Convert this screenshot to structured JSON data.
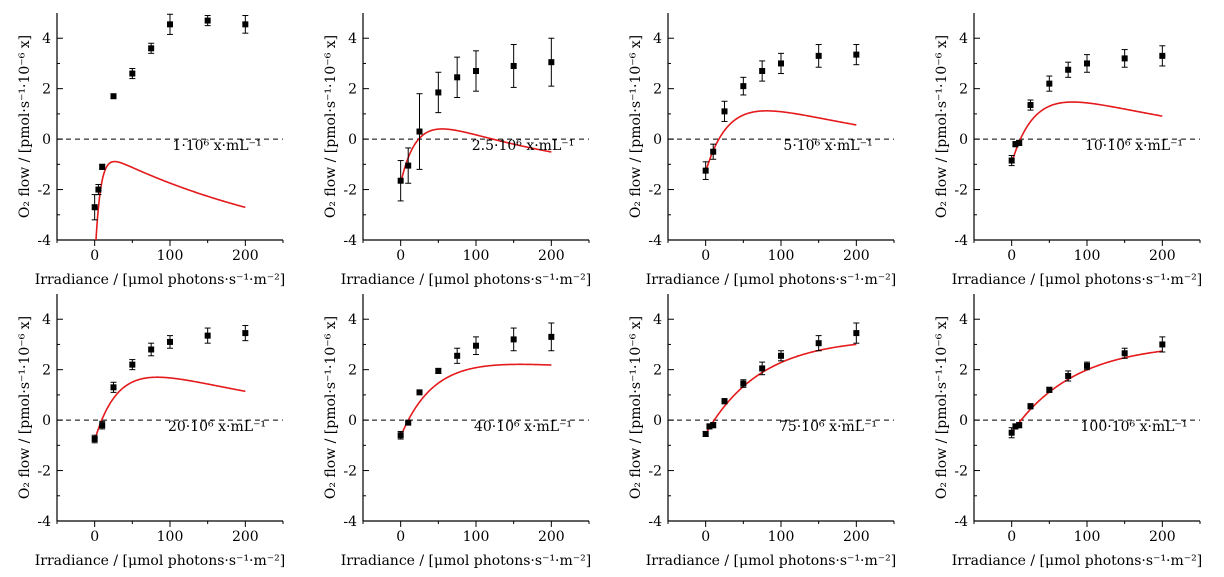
{
  "colors": {
    "fit_line": "#e41a1c",
    "markers": "#000000",
    "zero_line": "#000000"
  },
  "chart_data": [
    {
      "type": "scatter",
      "annotation": "1·10⁶ x·mL⁻¹",
      "xlabel": "Irradiance / [μmol photons·s⁻¹·m⁻²]",
      "ylabel": "O₂ flow / [pmol·s⁻¹·10⁻⁶ x]",
      "xlim": [
        -50,
        250
      ],
      "ylim": [
        -4,
        5
      ],
      "xticks": [
        0,
        100,
        200
      ],
      "yticks": [
        -4,
        -2,
        0,
        2,
        4
      ],
      "zero_line": "dashed",
      "x": [
        0,
        5,
        10,
        25,
        50,
        75,
        100,
        150,
        200
      ],
      "y": [
        -2.7,
        -2.0,
        -1.1,
        1.7,
        2.6,
        3.6,
        4.55,
        4.7,
        4.55
      ],
      "err": [
        0.5,
        0.2,
        0.1,
        0.05,
        0.2,
        0.2,
        0.4,
        0.2,
        0.35
      ],
      "fit": {
        "Pmax": 4.62,
        "alpha": 0.65,
        "beta": 0.0035,
        "Rd": -5.0
      }
    },
    {
      "type": "scatter",
      "annotation": "2.5·10⁶ x·mL⁻¹",
      "xlabel": "Irradiance / [μmol photons·s⁻¹·m⁻²]",
      "ylabel": "O₂ flow / [pmol·s⁻¹·10⁻⁶ x]",
      "xlim": [
        -50,
        250
      ],
      "ylim": [
        -4,
        5
      ],
      "xticks": [
        0,
        100,
        200
      ],
      "yticks": [
        -4,
        -2,
        0,
        2,
        4
      ],
      "zero_line": "dashed",
      "x": [
        0,
        10,
        25,
        50,
        75,
        100,
        150,
        200
      ],
      "y": [
        -1.65,
        -1.05,
        0.3,
        1.85,
        2.45,
        2.7,
        2.9,
        3.05
      ],
      "err": [
        0.8,
        0.7,
        1.5,
        0.8,
        0.8,
        0.8,
        0.85,
        0.95
      ],
      "fit": {
        "Pmax": 3.05,
        "alpha": 0.13,
        "beta": 0.0045,
        "Rd": -1.75
      }
    },
    {
      "type": "scatter",
      "annotation": "5·10⁶ x·mL⁻¹",
      "xlabel": "Irradiance / [μmol photons·s⁻¹·m⁻²]",
      "ylabel": "O₂ flow / [pmol·s⁻¹·10⁻⁶ x]",
      "xlim": [
        -50,
        250
      ],
      "ylim": [
        -4,
        5
      ],
      "xticks": [
        0,
        100,
        200
      ],
      "yticks": [
        -4,
        -2,
        0,
        2,
        4
      ],
      "zero_line": "dashed",
      "x": [
        0,
        10,
        25,
        50,
        75,
        100,
        150,
        200
      ],
      "y": [
        -1.25,
        -0.5,
        1.1,
        2.1,
        2.7,
        3.0,
        3.3,
        3.35
      ],
      "err": [
        0.35,
        0.3,
        0.4,
        0.35,
        0.4,
        0.4,
        0.45,
        0.4
      ],
      "fit": {
        "Pmax": 3.4,
        "alpha": 0.1,
        "beta": 0.003,
        "Rd": -1.3
      }
    },
    {
      "type": "scatter",
      "annotation": "10·10⁶ x·mL⁻¹",
      "xlabel": "Irradiance / [μmol photons·s⁻¹·m⁻²]",
      "ylabel": "O₂ flow / [pmol·s⁻¹·10⁻⁶ x]",
      "xlim": [
        -50,
        250
      ],
      "ylim": [
        -4,
        5
      ],
      "xticks": [
        0,
        100,
        200
      ],
      "yticks": [
        -4,
        -2,
        0,
        2,
        4
      ],
      "zero_line": "dashed",
      "x": [
        0,
        5,
        10,
        25,
        50,
        75,
        100,
        150,
        200
      ],
      "y": [
        -0.85,
        -0.2,
        -0.15,
        1.35,
        2.2,
        2.75,
        3.0,
        3.2,
        3.3
      ],
      "err": [
        0.2,
        0.1,
        0.1,
        0.2,
        0.3,
        0.3,
        0.35,
        0.35,
        0.4
      ],
      "fit": {
        "Pmax": 3.4,
        "alpha": 0.1,
        "beta": 0.003,
        "Rd": -0.95
      }
    },
    {
      "type": "scatter",
      "annotation": "20·10⁶ x·mL⁻¹",
      "xlabel": "Irradiance / [μmol photons·s⁻¹·m⁻²]",
      "ylabel": "O₂ flow / [pmol·s⁻¹·10⁻⁶ x]",
      "xlim": [
        -50,
        250
      ],
      "ylim": [
        -4,
        5
      ],
      "xticks": [
        0,
        100,
        200
      ],
      "yticks": [
        -4,
        -2,
        0,
        2,
        4
      ],
      "zero_line": "dashed",
      "x": [
        0,
        10,
        25,
        50,
        75,
        100,
        150,
        200
      ],
      "y": [
        -0.75,
        -0.2,
        1.3,
        2.2,
        2.8,
        3.1,
        3.35,
        3.45
      ],
      "err": [
        0.15,
        0.15,
        0.2,
        0.2,
        0.25,
        0.25,
        0.3,
        0.3
      ],
      "fit": {
        "Pmax": 3.55,
        "alpha": 0.1,
        "beta": 0.003,
        "Rd": -0.8
      }
    },
    {
      "type": "scatter",
      "annotation": "40·10⁶ x·mL⁻¹",
      "xlabel": "Irradiance / [μmol photons·s⁻¹·m⁻²]",
      "ylabel": "O₂ flow / [pmol·s⁻¹·10⁻⁶ x]",
      "xlim": [
        -50,
        250
      ],
      "ylim": [
        -4,
        5
      ],
      "xticks": [
        0,
        100,
        200
      ],
      "yticks": [
        -4,
        -2,
        0,
        2,
        4
      ],
      "zero_line": "dashed",
      "x": [
        0,
        10,
        25,
        50,
        75,
        100,
        150,
        200
      ],
      "y": [
        -0.6,
        -0.1,
        1.1,
        1.95,
        2.55,
        2.95,
        3.2,
        3.3
      ],
      "err": [
        0.15,
        0.05,
        0.05,
        0.1,
        0.3,
        0.35,
        0.45,
        0.55
      ],
      "fit": {
        "Pmax": 3.3,
        "alpha": 0.072,
        "beta": 0.0007,
        "Rd": -0.65
      }
    },
    {
      "type": "scatter",
      "annotation": "75·10⁶ x·mL⁻¹",
      "xlabel": "Irradiance / [μmol photons·s⁻¹·m⁻²]",
      "ylabel": "O₂ flow / [pmol·s⁻¹·10⁻⁶ x]",
      "xlim": [
        -50,
        250
      ],
      "ylim": [
        -4,
        5
      ],
      "xticks": [
        0,
        100,
        200
      ],
      "yticks": [
        -4,
        -2,
        0,
        2,
        4
      ],
      "zero_line": "dashed",
      "x": [
        0,
        5,
        10,
        25,
        50,
        75,
        100,
        150,
        200
      ],
      "y": [
        -0.55,
        -0.25,
        -0.2,
        0.75,
        1.45,
        2.05,
        2.55,
        3.05,
        3.45
      ],
      "err": [
        0.1,
        0.1,
        0.1,
        0.1,
        0.15,
        0.25,
        0.2,
        0.3,
        0.4
      ],
      "fit": {
        "Pmax": 3.8,
        "alpha": 0.052,
        "beta": 0,
        "Rd": -0.55
      }
    },
    {
      "type": "scatter",
      "annotation": "100·10⁶ x·mL⁻¹",
      "xlabel": "Irradiance / [μmol photons·s⁻¹·m⁻²]",
      "ylabel": "O₂ flow / [pmol·s⁻¹·10⁻⁶ x]",
      "xlim": [
        -50,
        250
      ],
      "ylim": [
        -4,
        5
      ],
      "xticks": [
        0,
        100,
        200
      ],
      "yticks": [
        -4,
        -2,
        0,
        2,
        4
      ],
      "zero_line": "dashed",
      "x": [
        0,
        5,
        10,
        25,
        50,
        75,
        100,
        150,
        200
      ],
      "y": [
        -0.5,
        -0.25,
        -0.2,
        0.55,
        1.2,
        1.75,
        2.15,
        2.65,
        3.0
      ],
      "err": [
        0.2,
        0.1,
        0.1,
        0.1,
        0.1,
        0.2,
        0.15,
        0.2,
        0.3
      ],
      "fit": {
        "Pmax": 3.55,
        "alpha": 0.043,
        "beta": 0,
        "Rd": -0.5
      }
    }
  ]
}
